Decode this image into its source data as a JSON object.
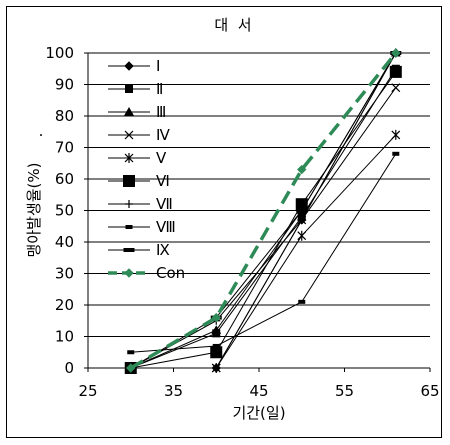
{
  "chart_data": {
    "type": "line",
    "title": "대  서",
    "xlabel": "기간(일)",
    "ylabel": "맹아발생율(%)",
    "ylabel_mark": ".",
    "xlim": [
      25,
      65
    ],
    "ylim": [
      0,
      100
    ],
    "xticks": [
      25,
      35,
      45,
      55,
      65
    ],
    "yticks": [
      0,
      10,
      20,
      30,
      40,
      50,
      60,
      70,
      80,
      90,
      100
    ],
    "grid": "horizontal",
    "legend_position": "top-left inside",
    "series": [
      {
        "name": "Ⅰ",
        "marker": "diamond",
        "color": "#000000",
        "points": [
          [
            30,
            0
          ],
          [
            40,
            0
          ],
          [
            50,
            47
          ],
          [
            61,
            100
          ]
        ]
      },
      {
        "name": "Ⅱ",
        "marker": "square",
        "color": "#000000",
        "points": [
          [
            30,
            0
          ],
          [
            40,
            11
          ],
          [
            50,
            48
          ],
          [
            61,
            95
          ]
        ]
      },
      {
        "name": "Ⅲ",
        "marker": "triangle",
        "color": "#000000",
        "points": [
          [
            30,
            0
          ],
          [
            40,
            12
          ],
          [
            50,
            50
          ],
          [
            61,
            100
          ]
        ]
      },
      {
        "name": "Ⅳ",
        "marker": "x",
        "color": "#000000",
        "points": [
          [
            30,
            0
          ],
          [
            40,
            0
          ],
          [
            50,
            47
          ],
          [
            61,
            89
          ]
        ]
      },
      {
        "name": "Ⅴ",
        "marker": "asterisk",
        "color": "#000000",
        "points": [
          [
            30,
            0
          ],
          [
            40,
            0
          ],
          [
            50,
            42
          ],
          [
            61,
            74
          ]
        ]
      },
      {
        "name": "Ⅵ",
        "marker": "bigsquare",
        "color": "#000000",
        "points": [
          [
            30,
            0
          ],
          [
            40,
            5
          ],
          [
            50,
            52
          ],
          [
            61,
            94
          ]
        ]
      },
      {
        "name": "Ⅶ",
        "marker": "plus",
        "color": "#000000",
        "points": [
          [
            30,
            0
          ],
          [
            40,
            15
          ],
          [
            50,
            47
          ],
          [
            61,
            100
          ]
        ]
      },
      {
        "name": "Ⅷ",
        "marker": "dash",
        "color": "#000000",
        "points": [
          [
            30,
            5
          ],
          [
            40,
            7
          ],
          [
            50,
            21
          ],
          [
            61,
            68
          ]
        ]
      },
      {
        "name": "Ⅸ",
        "marker": "bar",
        "color": "#000000",
        "points": [
          [
            30,
            0
          ],
          [
            40,
            16
          ],
          [
            50,
            50
          ],
          [
            61,
            100
          ]
        ]
      },
      {
        "name": "Con",
        "marker": "diamond",
        "color": "#2e8b57",
        "dashed": true,
        "points": [
          [
            30,
            0
          ],
          [
            40,
            16
          ],
          [
            50,
            63
          ],
          [
            61,
            100
          ]
        ]
      }
    ]
  }
}
